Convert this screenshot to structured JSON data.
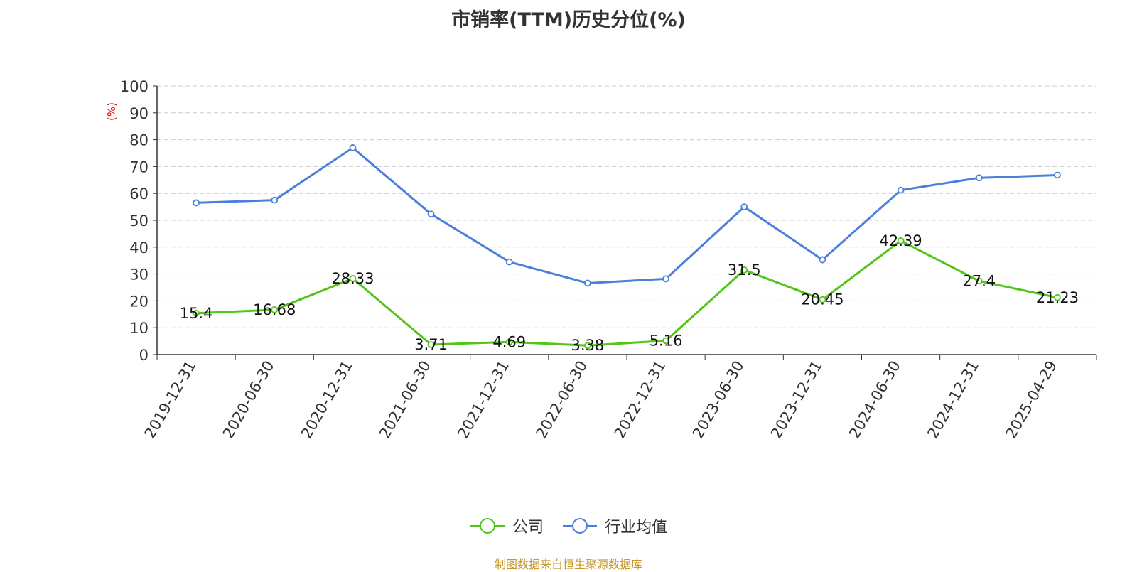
{
  "chart_data": {
    "type": "line",
    "title": "市销率(TTM)历史分位(%)",
    "ylabel": "(%)",
    "ylim": [
      0,
      100
    ],
    "yticks": [
      0,
      10,
      20,
      30,
      40,
      50,
      60,
      70,
      80,
      90,
      100
    ],
    "grid": true,
    "legend_position": "bottom",
    "categories": [
      "2019-12-31",
      "2020-06-30",
      "2020-12-31",
      "2021-06-30",
      "2021-12-31",
      "2022-06-30",
      "2022-12-31",
      "2023-06-30",
      "2023-12-31",
      "2024-06-30",
      "2024-12-31",
      "2025-04-29"
    ],
    "series": [
      {
        "name": "公司",
        "color": "#52c41a",
        "labeled": true,
        "values": [
          15.4,
          16.68,
          28.33,
          3.71,
          4.69,
          3.38,
          5.16,
          31.5,
          20.45,
          42.39,
          27.4,
          21.23
        ]
      },
      {
        "name": "行业均值",
        "color": "#4a7fdc",
        "labeled": false,
        "values": [
          56.5,
          57.5,
          77,
          52.3,
          34.5,
          26.6,
          28.2,
          55,
          35.3,
          61.2,
          65.8,
          66.8
        ]
      }
    ]
  },
  "source": "制图数据来自恒生聚源数据库"
}
